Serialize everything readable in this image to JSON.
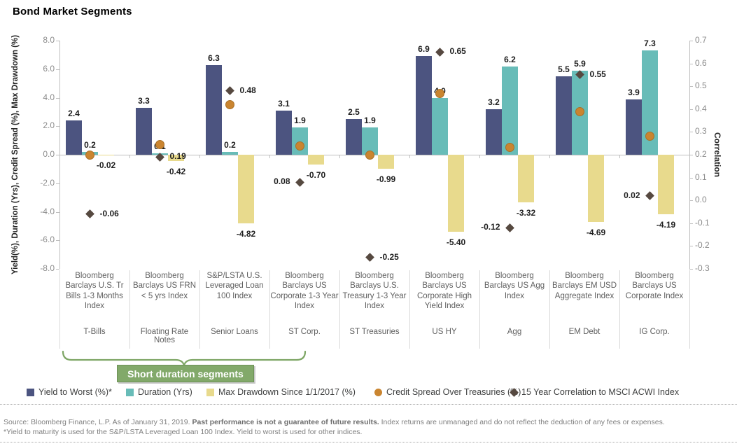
{
  "title": "Bond Market Segments",
  "axes": {
    "left": {
      "title": "Yield(%), Duration (Yrs), Credit Spread (%), Max Drawdown (%)",
      "ticks": [
        "8.0",
        "6.0",
        "4.0",
        "2.0",
        "0.0",
        "-2.0",
        "-4.0",
        "-6.0",
        "-8.0"
      ]
    },
    "right": {
      "title": "Correlation",
      "ticks": [
        "0.7",
        "0.6",
        "0.5",
        "0.4",
        "0.3",
        "0.2",
        "0.1",
        "0.0",
        "-0.1",
        "-0.2",
        "-0.3"
      ]
    }
  },
  "chart_data": {
    "type": "bar",
    "title": "Bond Market Segments",
    "left_axis_range": [
      -8.0,
      8.0
    ],
    "right_axis_range": [
      -0.3,
      0.7
    ],
    "grid": "zero-line-only",
    "legend_position": "bottom",
    "categories": [
      "Bloomberg Barclays U.S. Tr Bills 1-3 Months Index",
      "Bloomberg Barclays US FRN < 5 yrs Index",
      "S&P/LSTA U.S. Leveraged Loan 100 Index",
      "Bloomberg Barclays US Corporate 1-3 Year Index",
      "Bloomberg Barclays U.S. Treasury 1-3 Year Index",
      "Bloomberg Barclays US Corporate High Yield Index",
      "Bloomberg Barclays US Agg Index",
      "Bloomberg Barclays EM USD Aggregate Index",
      "Bloomberg Barclays US Corporate Index"
    ],
    "category_short_names": [
      "T-Bills",
      "Floating Rate Notes",
      "Senior Loans",
      "ST Corp.",
      "ST Treasuries",
      "US HY",
      "Agg",
      "EM Debt",
      "IG Corp."
    ],
    "series": [
      {
        "name": "Yield to Worst (%)*",
        "type": "bar",
        "axis": "left",
        "color": "#4c5480",
        "values": [
          2.4,
          3.3,
          6.3,
          3.1,
          2.5,
          6.9,
          3.2,
          5.5,
          3.9
        ],
        "labels": [
          "2.4",
          "3.3",
          "6.3",
          "3.1",
          "2.5",
          "6.9",
          "3.2",
          "5.5",
          "3.9"
        ]
      },
      {
        "name": "Duration (Yrs)",
        "type": "bar",
        "axis": "left",
        "color": "#68bcb8",
        "values": [
          0.2,
          0.1,
          0.2,
          1.9,
          1.9,
          4.0,
          6.2,
          5.9,
          7.3
        ],
        "labels": [
          "0.2",
          "0.1",
          "0.2",
          "1.9",
          "1.9",
          "4.0",
          "6.2",
          "5.9",
          "7.3"
        ]
      },
      {
        "name": "Max Drawdown Since 1/1/2017 (%)",
        "type": "bar",
        "axis": "left",
        "color": "#e8da8d",
        "values": [
          -0.02,
          -0.42,
          -4.82,
          -0.7,
          -0.99,
          -5.4,
          -3.32,
          -4.69,
          -4.19
        ],
        "labels": [
          "-0.02",
          "-0.42",
          "-4.82",
          "-0.70",
          "-0.99",
          "-5.40",
          "-3.32",
          "-4.69",
          "-4.19"
        ]
      },
      {
        "name": "Credit Spread Over Treasuries (%)",
        "type": "point-circle",
        "axis": "left",
        "color": "#ca8530",
        "values": [
          0.0,
          0.7,
          3.5,
          0.6,
          0.0,
          4.3,
          0.5,
          3.0,
          1.3
        ],
        "labels": null
      },
      {
        "name": "15 Year Correlation to MSCI ACWI Index",
        "type": "point-diamond",
        "axis": "right",
        "color": "#564940",
        "values": [
          -0.06,
          0.19,
          0.48,
          0.08,
          -0.25,
          0.65,
          -0.12,
          0.55,
          0.02
        ],
        "labels": [
          "-0.06",
          "0.19",
          "0.48",
          "0.08",
          "-0.25",
          "0.65",
          "-0.12",
          "0.55",
          "0.02"
        ]
      }
    ]
  },
  "annotation": {
    "label": "Short duration segments",
    "fill": "#82a96a"
  },
  "legend": [
    {
      "label": "Yield to Worst (%)*",
      "marker": "square",
      "color": "#4c5480"
    },
    {
      "label": "Duration (Yrs)",
      "marker": "square",
      "color": "#68bcb8"
    },
    {
      "label": "Max Drawdown Since 1/1/2017 (%)",
      "marker": "square",
      "color": "#e8da8d"
    },
    {
      "label": "Credit Spread Over Treasuries (%)",
      "marker": "circle",
      "color": "#ca8530"
    },
    {
      "label": "15 Year Correlation to MSCI ACWI Index",
      "marker": "diamond",
      "color": "#564940"
    }
  ],
  "footer": {
    "line1_normal": "Source: Bloomberg Finance, L.P. As of January 31, 2019. ",
    "line1_bold": "Past performance is not a guarantee of future results.",
    "line1_rest": " Index returns are unmanaged and do not reflect the deduction of any fees or expenses.",
    "line2": "*Yield to maturity is used for the S&P/LSTA Leveraged Loan 100 Index. Yield to worst is used for other indices."
  }
}
